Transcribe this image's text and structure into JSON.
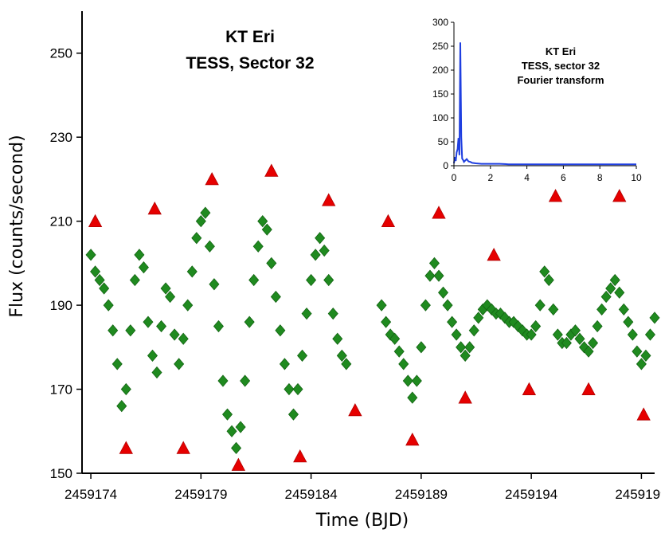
{
  "chart_data": [
    {
      "type": "scatter",
      "title_lines": [
        "KT Eri",
        "TESS, Sector 32"
      ],
      "xlabel": "Time (BJD)",
      "ylabel": "Flux (counts/second)",
      "xlim": [
        2459173.6,
        2459199.6
      ],
      "ylim": [
        150,
        260
      ],
      "xticks": [
        2459174,
        2459179,
        2459184,
        2459189,
        2459194,
        2459199
      ],
      "xtick_labels": [
        "2459174",
        "2459179",
        "2459184",
        "2459189",
        "2459194",
        "2459199"
      ],
      "yticks": [
        150,
        170,
        190,
        210,
        230,
        250
      ],
      "ytick_labels": [
        "150",
        "170",
        "190",
        "210",
        "230",
        "250"
      ],
      "series": [
        {
          "name": "Flux",
          "marker": "diamond",
          "color": "#1f8a1f",
          "segments": [
            {
              "x": [
                2459174.0,
                2459174.2,
                2459174.4,
                2459174.6,
                2459174.8,
                2459175.0,
                2459175.2,
                2459175.4,
                2459175.6,
                2459175.8,
                2459176.0,
                2459176.2,
                2459176.4,
                2459176.6,
                2459176.8,
                2459177.0,
                2459177.2,
                2459177.4,
                2459177.6,
                2459177.8,
                2459178.0,
                2459178.2,
                2459178.4,
                2459178.6,
                2459178.8,
                2459179.0,
                2459179.2,
                2459179.4,
                2459179.6,
                2459179.8,
                2459180.0,
                2459180.2,
                2459180.4,
                2459180.6,
                2459180.8,
                2459181.0,
                2459181.2,
                2459181.4,
                2459181.6,
                2459181.8,
                2459182.0,
                2459182.2,
                2459182.4,
                2459182.6,
                2459182.8,
                2459183.0,
                2459183.2,
                2459183.4,
                2459183.6,
                2459183.8,
                2459184.0,
                2459184.2,
                2459184.4,
                2459184.6,
                2459184.8,
                2459185.0,
                2459185.2,
                2459185.4,
                2459185.6
              ],
              "y": [
                202,
                198,
                196,
                194,
                190,
                184,
                176,
                166,
                170,
                184,
                196,
                202,
                199,
                186,
                178,
                174,
                185,
                194,
                192,
                183,
                176,
                182,
                190,
                198,
                206,
                210,
                212,
                204,
                195,
                185,
                172,
                164,
                160,
                156,
                161,
                172,
                186,
                196,
                204,
                210,
                208,
                200,
                192,
                184,
                176,
                170,
                164,
                170,
                178,
                188,
                196,
                202,
                206,
                203,
                196,
                188,
                182,
                178,
                176
              ]
            },
            {
              "x": [
                2459187.2,
                2459187.4,
                2459187.6,
                2459187.8,
                2459188.0,
                2459188.2,
                2459188.4,
                2459188.6,
                2459188.8,
                2459189.0,
                2459189.2,
                2459189.4,
                2459189.6,
                2459189.8,
                2459190.0,
                2459190.2,
                2459190.4,
                2459190.6,
                2459190.8,
                2459191.0,
                2459191.2,
                2459191.4,
                2459191.6,
                2459191.8,
                2459192.0,
                2459192.2,
                2459192.4,
                2459192.6,
                2459192.8,
                2459193.0,
                2459193.2,
                2459193.4,
                2459193.6,
                2459193.8,
                2459194.0,
                2459194.2,
                2459194.4,
                2459194.6,
                2459194.8,
                2459195.0,
                2459195.2,
                2459195.4,
                2459195.6,
                2459195.8,
                2459196.0,
                2459196.2,
                2459196.4,
                2459196.6,
                2459196.8,
                2459197.0,
                2459197.2,
                2459197.4,
                2459197.6,
                2459197.8,
                2459198.0,
                2459198.2,
                2459198.4,
                2459198.6,
                2459198.8,
                2459199.0,
                2459199.2,
                2459199.4,
                2459199.6
              ],
              "y": [
                190,
                186,
                183,
                182,
                179,
                176,
                172,
                168,
                172,
                180,
                190,
                197,
                200,
                197,
                193,
                190,
                186,
                183,
                180,
                178,
                180,
                184,
                187,
                189,
                190,
                189,
                188,
                188,
                187,
                186,
                186,
                185,
                184,
                183,
                183,
                185,
                190,
                198,
                196,
                189,
                183,
                181,
                181,
                183,
                184,
                182,
                180,
                179,
                181,
                185,
                189,
                192,
                194,
                196,
                193,
                189,
                186,
                183,
                179,
                176,
                178,
                183,
                187
              ]
            }
          ]
        },
        {
          "name": "Extrema",
          "marker": "triangle",
          "color": "#e60000",
          "x": [
            2459174.2,
            2459175.6,
            2459176.9,
            2459178.2,
            2459179.5,
            2459180.7,
            2459182.2,
            2459183.5,
            2459184.8,
            2459186.0,
            2459187.5,
            2459188.6,
            2459189.8,
            2459191.0,
            2459192.3,
            2459193.9,
            2459195.1,
            2459196.6,
            2459198.0,
            2459199.1
          ],
          "y": [
            210,
            156,
            213,
            156,
            220,
            152,
            222,
            154,
            215,
            165,
            210,
            158,
            212,
            168,
            202,
            170,
            216,
            170,
            216,
            164
          ]
        }
      ]
    },
    {
      "type": "line",
      "title_lines": [
        "KT Eri",
        "TESS, sector 32",
        "Fourier transform"
      ],
      "xlim": [
        0,
        10
      ],
      "ylim": [
        0,
        300
      ],
      "xticks": [
        0,
        2,
        4,
        6,
        8,
        10
      ],
      "xtick_labels": [
        "0",
        "2",
        "4",
        "6",
        "8",
        "10"
      ],
      "yticks": [
        0,
        50,
        100,
        150,
        200,
        250,
        300
      ],
      "ytick_labels": [
        "0",
        "50",
        "100",
        "150",
        "200",
        "250",
        "300"
      ],
      "series": [
        {
          "name": "Amplitude",
          "color": "#1f3fe0",
          "x": [
            0.0,
            0.05,
            0.1,
            0.15,
            0.2,
            0.25,
            0.3,
            0.35,
            0.4,
            0.45,
            0.5,
            0.55,
            0.6,
            0.7,
            0.8,
            0.9,
            1.0,
            1.2,
            1.5,
            2.0,
            2.5,
            3.0,
            3.5,
            4.0,
            5.0,
            6.0,
            7.0,
            8.0,
            9.0,
            10.0
          ],
          "y": [
            5,
            18,
            10,
            28,
            35,
            58,
            22,
            258,
            60,
            15,
            12,
            8,
            10,
            14,
            9,
            8,
            6,
            5,
            4,
            4,
            4,
            3,
            3,
            3,
            3,
            3,
            3,
            3,
            3,
            3
          ]
        }
      ]
    }
  ]
}
